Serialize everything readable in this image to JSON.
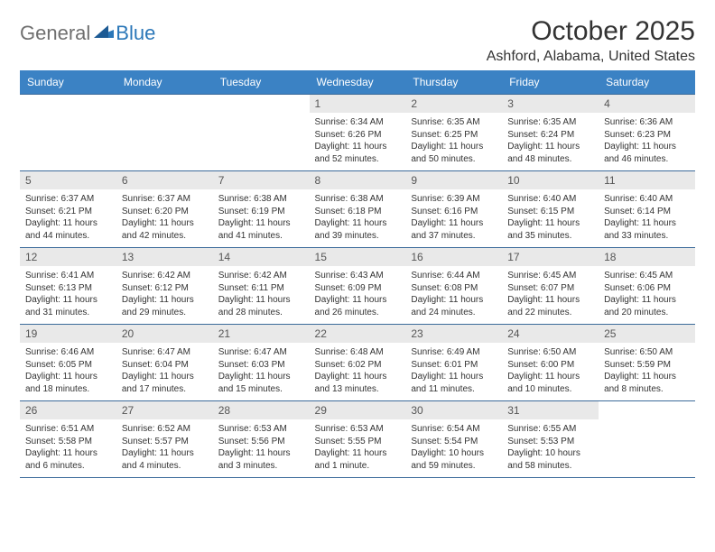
{
  "logo": {
    "general": "General",
    "blue": "Blue"
  },
  "title": "October 2025",
  "location": "Ashford, Alabama, United States",
  "colors": {
    "header_bg": "#3b82c4",
    "header_text": "#ffffff",
    "daynum_bg": "#e9e9e9",
    "cell_border": "#3b6a9a",
    "text": "#333333",
    "logo_gray": "#6f6f6f",
    "logo_blue": "#2b77b8"
  },
  "weekdays": [
    "Sunday",
    "Monday",
    "Tuesday",
    "Wednesday",
    "Thursday",
    "Friday",
    "Saturday"
  ],
  "weeks": [
    [
      {
        "n": "",
        "sr": "",
        "ss": "",
        "dl": ""
      },
      {
        "n": "",
        "sr": "",
        "ss": "",
        "dl": ""
      },
      {
        "n": "",
        "sr": "",
        "ss": "",
        "dl": ""
      },
      {
        "n": "1",
        "sr": "Sunrise: 6:34 AM",
        "ss": "Sunset: 6:26 PM",
        "dl": "Daylight: 11 hours and 52 minutes."
      },
      {
        "n": "2",
        "sr": "Sunrise: 6:35 AM",
        "ss": "Sunset: 6:25 PM",
        "dl": "Daylight: 11 hours and 50 minutes."
      },
      {
        "n": "3",
        "sr": "Sunrise: 6:35 AM",
        "ss": "Sunset: 6:24 PM",
        "dl": "Daylight: 11 hours and 48 minutes."
      },
      {
        "n": "4",
        "sr": "Sunrise: 6:36 AM",
        "ss": "Sunset: 6:23 PM",
        "dl": "Daylight: 11 hours and 46 minutes."
      }
    ],
    [
      {
        "n": "5",
        "sr": "Sunrise: 6:37 AM",
        "ss": "Sunset: 6:21 PM",
        "dl": "Daylight: 11 hours and 44 minutes."
      },
      {
        "n": "6",
        "sr": "Sunrise: 6:37 AM",
        "ss": "Sunset: 6:20 PM",
        "dl": "Daylight: 11 hours and 42 minutes."
      },
      {
        "n": "7",
        "sr": "Sunrise: 6:38 AM",
        "ss": "Sunset: 6:19 PM",
        "dl": "Daylight: 11 hours and 41 minutes."
      },
      {
        "n": "8",
        "sr": "Sunrise: 6:38 AM",
        "ss": "Sunset: 6:18 PM",
        "dl": "Daylight: 11 hours and 39 minutes."
      },
      {
        "n": "9",
        "sr": "Sunrise: 6:39 AM",
        "ss": "Sunset: 6:16 PM",
        "dl": "Daylight: 11 hours and 37 minutes."
      },
      {
        "n": "10",
        "sr": "Sunrise: 6:40 AM",
        "ss": "Sunset: 6:15 PM",
        "dl": "Daylight: 11 hours and 35 minutes."
      },
      {
        "n": "11",
        "sr": "Sunrise: 6:40 AM",
        "ss": "Sunset: 6:14 PM",
        "dl": "Daylight: 11 hours and 33 minutes."
      }
    ],
    [
      {
        "n": "12",
        "sr": "Sunrise: 6:41 AM",
        "ss": "Sunset: 6:13 PM",
        "dl": "Daylight: 11 hours and 31 minutes."
      },
      {
        "n": "13",
        "sr": "Sunrise: 6:42 AM",
        "ss": "Sunset: 6:12 PM",
        "dl": "Daylight: 11 hours and 29 minutes."
      },
      {
        "n": "14",
        "sr": "Sunrise: 6:42 AM",
        "ss": "Sunset: 6:11 PM",
        "dl": "Daylight: 11 hours and 28 minutes."
      },
      {
        "n": "15",
        "sr": "Sunrise: 6:43 AM",
        "ss": "Sunset: 6:09 PM",
        "dl": "Daylight: 11 hours and 26 minutes."
      },
      {
        "n": "16",
        "sr": "Sunrise: 6:44 AM",
        "ss": "Sunset: 6:08 PM",
        "dl": "Daylight: 11 hours and 24 minutes."
      },
      {
        "n": "17",
        "sr": "Sunrise: 6:45 AM",
        "ss": "Sunset: 6:07 PM",
        "dl": "Daylight: 11 hours and 22 minutes."
      },
      {
        "n": "18",
        "sr": "Sunrise: 6:45 AM",
        "ss": "Sunset: 6:06 PM",
        "dl": "Daylight: 11 hours and 20 minutes."
      }
    ],
    [
      {
        "n": "19",
        "sr": "Sunrise: 6:46 AM",
        "ss": "Sunset: 6:05 PM",
        "dl": "Daylight: 11 hours and 18 minutes."
      },
      {
        "n": "20",
        "sr": "Sunrise: 6:47 AM",
        "ss": "Sunset: 6:04 PM",
        "dl": "Daylight: 11 hours and 17 minutes."
      },
      {
        "n": "21",
        "sr": "Sunrise: 6:47 AM",
        "ss": "Sunset: 6:03 PM",
        "dl": "Daylight: 11 hours and 15 minutes."
      },
      {
        "n": "22",
        "sr": "Sunrise: 6:48 AM",
        "ss": "Sunset: 6:02 PM",
        "dl": "Daylight: 11 hours and 13 minutes."
      },
      {
        "n": "23",
        "sr": "Sunrise: 6:49 AM",
        "ss": "Sunset: 6:01 PM",
        "dl": "Daylight: 11 hours and 11 minutes."
      },
      {
        "n": "24",
        "sr": "Sunrise: 6:50 AM",
        "ss": "Sunset: 6:00 PM",
        "dl": "Daylight: 11 hours and 10 minutes."
      },
      {
        "n": "25",
        "sr": "Sunrise: 6:50 AM",
        "ss": "Sunset: 5:59 PM",
        "dl": "Daylight: 11 hours and 8 minutes."
      }
    ],
    [
      {
        "n": "26",
        "sr": "Sunrise: 6:51 AM",
        "ss": "Sunset: 5:58 PM",
        "dl": "Daylight: 11 hours and 6 minutes."
      },
      {
        "n": "27",
        "sr": "Sunrise: 6:52 AM",
        "ss": "Sunset: 5:57 PM",
        "dl": "Daylight: 11 hours and 4 minutes."
      },
      {
        "n": "28",
        "sr": "Sunrise: 6:53 AM",
        "ss": "Sunset: 5:56 PM",
        "dl": "Daylight: 11 hours and 3 minutes."
      },
      {
        "n": "29",
        "sr": "Sunrise: 6:53 AM",
        "ss": "Sunset: 5:55 PM",
        "dl": "Daylight: 11 hours and 1 minute."
      },
      {
        "n": "30",
        "sr": "Sunrise: 6:54 AM",
        "ss": "Sunset: 5:54 PM",
        "dl": "Daylight: 10 hours and 59 minutes."
      },
      {
        "n": "31",
        "sr": "Sunrise: 6:55 AM",
        "ss": "Sunset: 5:53 PM",
        "dl": "Daylight: 10 hours and 58 minutes."
      },
      {
        "n": "",
        "sr": "",
        "ss": "",
        "dl": ""
      }
    ]
  ]
}
